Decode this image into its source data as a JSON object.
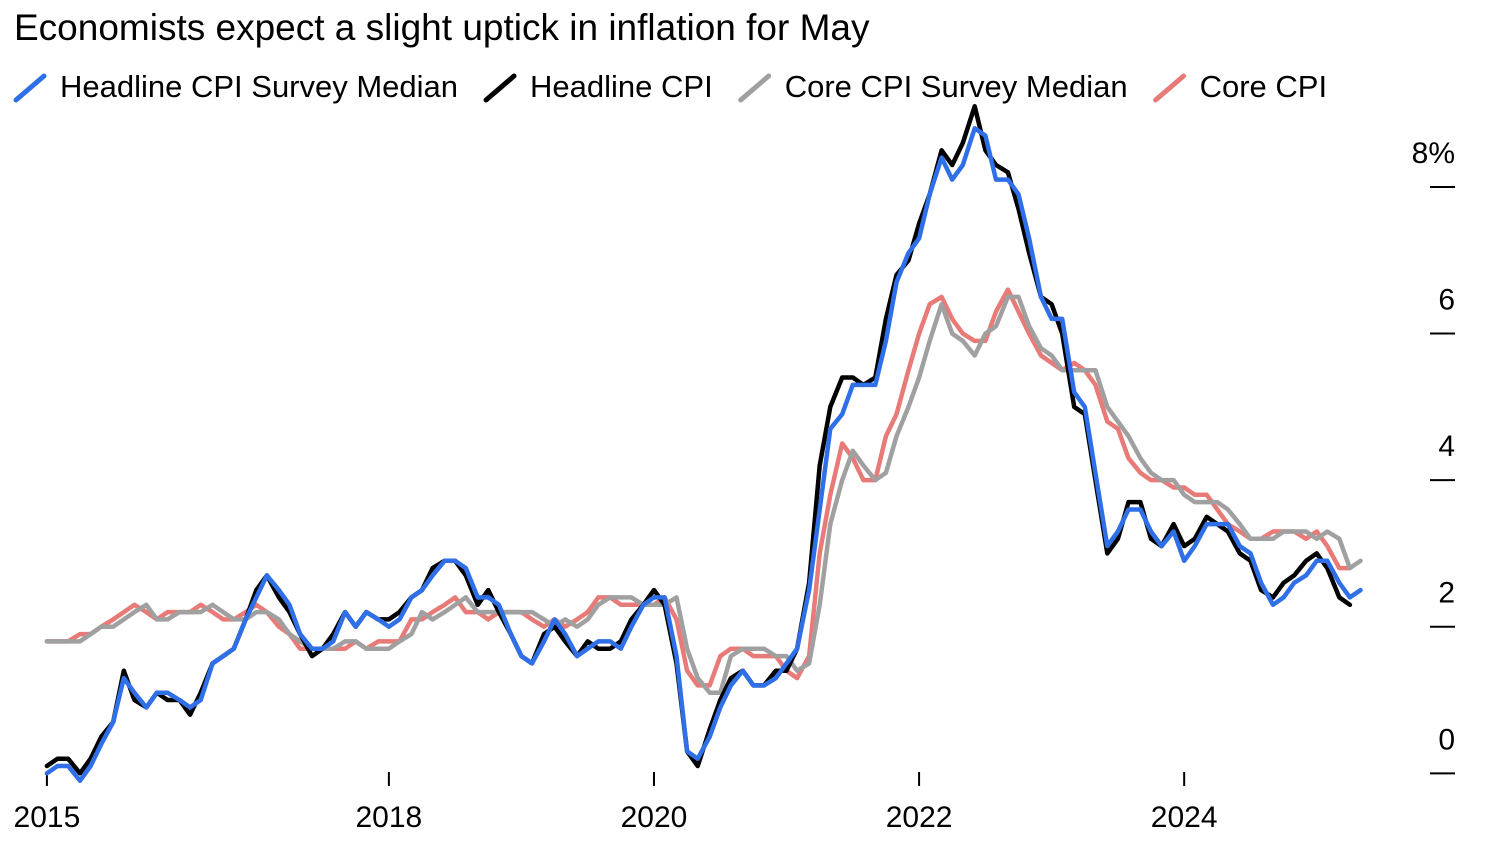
{
  "chart_data": {
    "type": "line",
    "title": "Economists expect a slight uptick in inflation for May",
    "x": [
      2015.42,
      2015.5,
      2015.58,
      2015.67,
      2015.75,
      2015.83,
      2015.92,
      2016,
      2016.08,
      2016.17,
      2016.25,
      2016.33,
      2016.42,
      2016.5,
      2016.58,
      2016.67,
      2016.75,
      2016.83,
      2016.92,
      2017,
      2017.08,
      2017.17,
      2017.25,
      2017.33,
      2017.42,
      2017.5,
      2017.58,
      2017.67,
      2017.75,
      2017.83,
      2017.92,
      2018,
      2018.08,
      2018.17,
      2018.25,
      2018.33,
      2018.42,
      2018.5,
      2018.58,
      2018.67,
      2018.75,
      2018.83,
      2018.92,
      2019,
      2019.08,
      2019.17,
      2019.25,
      2019.33,
      2019.42,
      2019.5,
      2019.58,
      2019.67,
      2019.75,
      2019.83,
      2019.92,
      2020,
      2020.08,
      2020.17,
      2020.25,
      2020.33,
      2020.42,
      2020.5,
      2020.58,
      2020.67,
      2020.75,
      2020.83,
      2020.92,
      2021,
      2021.08,
      2021.17,
      2021.25,
      2021.33,
      2021.42,
      2021.5,
      2021.58,
      2021.67,
      2021.75,
      2021.83,
      2021.92,
      2022,
      2022.08,
      2022.17,
      2022.25,
      2022.33,
      2022.42,
      2022.5,
      2022.58,
      2022.67,
      2022.75,
      2022.83,
      2022.92,
      2023,
      2023.08,
      2023.17,
      2023.25,
      2023.33,
      2023.42,
      2023.5,
      2023.58,
      2023.67,
      2023.75,
      2023.83,
      2023.92,
      2024,
      2024.08,
      2024.17,
      2024.25,
      2024.33,
      2024.42,
      2024.5,
      2024.58,
      2024.67,
      2024.75,
      2024.83,
      2024.92,
      2025,
      2025.08,
      2025.17,
      2025.25,
      2025.33
    ],
    "series": [
      {
        "name": "Headline CPI Survey Median",
        "color": "#2f6fe8",
        "values": [
          0.0,
          0.1,
          0.1,
          -0.1,
          0.1,
          0.4,
          0.7,
          1.3,
          1.1,
          0.9,
          1.1,
          1.1,
          1.0,
          0.9,
          1.0,
          1.5,
          1.6,
          1.7,
          2.1,
          2.4,
          2.7,
          2.5,
          2.3,
          1.9,
          1.7,
          1.7,
          1.8,
          2.2,
          2.0,
          2.2,
          2.1,
          2.0,
          2.1,
          2.4,
          2.5,
          2.7,
          2.9,
          2.9,
          2.8,
          2.4,
          2.4,
          2.3,
          1.9,
          1.6,
          1.5,
          1.8,
          2.1,
          1.9,
          1.6,
          1.7,
          1.8,
          1.8,
          1.7,
          2.0,
          2.3,
          2.4,
          2.4,
          1.6,
          0.3,
          0.2,
          0.5,
          0.9,
          1.2,
          1.4,
          1.2,
          1.2,
          1.3,
          1.5,
          1.7,
          2.5,
          3.6,
          4.7,
          4.9,
          5.3,
          5.3,
          5.3,
          5.9,
          6.7,
          7.1,
          7.3,
          7.9,
          8.4,
          8.1,
          8.3,
          8.8,
          8.7,
          8.1,
          8.1,
          7.9,
          7.3,
          6.5,
          6.2,
          6.2,
          5.2,
          5.0,
          4.1,
          3.1,
          3.3,
          3.6,
          3.6,
          3.3,
          3.1,
          3.3,
          2.9,
          3.1,
          3.4,
          3.4,
          3.4,
          3.1,
          3.0,
          2.6,
          2.3,
          2.4,
          2.6,
          2.7,
          2.9,
          2.9,
          2.6,
          2.4,
          2.5
        ]
      },
      {
        "name": "Headline CPI",
        "color": "#000000",
        "values": [
          0.1,
          0.2,
          0.2,
          0.0,
          0.2,
          0.5,
          0.7,
          1.4,
          1.0,
          0.9,
          1.1,
          1.0,
          1.0,
          0.8,
          1.1,
          1.5,
          1.6,
          1.7,
          2.1,
          2.5,
          2.7,
          2.4,
          2.2,
          1.9,
          1.6,
          1.7,
          1.9,
          2.2,
          2.0,
          2.2,
          2.1,
          2.1,
          2.2,
          2.4,
          2.5,
          2.8,
          2.9,
          2.9,
          2.7,
          2.3,
          2.5,
          2.2,
          1.9,
          1.6,
          1.5,
          1.9,
          2.0,
          1.8,
          1.6,
          1.8,
          1.7,
          1.7,
          1.8,
          2.1,
          2.3,
          2.5,
          2.3,
          1.5,
          0.3,
          0.1,
          0.6,
          1.0,
          1.3,
          1.4,
          1.2,
          1.2,
          1.4,
          1.4,
          1.7,
          2.6,
          4.2,
          5.0,
          5.4,
          5.4,
          5.3,
          5.4,
          6.2,
          6.8,
          7.0,
          7.5,
          7.9,
          8.5,
          8.3,
          8.6,
          9.1,
          8.5,
          8.3,
          8.2,
          7.7,
          7.1,
          6.5,
          6.4,
          6.0,
          5.0,
          4.9,
          4.0,
          3.0,
          3.2,
          3.7,
          3.7,
          3.2,
          3.1,
          3.4,
          3.1,
          3.2,
          3.5,
          3.4,
          3.3,
          3.0,
          2.9,
          2.5,
          2.4,
          2.6,
          2.7,
          2.9,
          3.0,
          2.8,
          2.4,
          2.3,
          null
        ]
      },
      {
        "name": "Core CPI Survey Median",
        "color": "#a0a0a0",
        "values": [
          1.8,
          1.8,
          1.8,
          1.8,
          1.9,
          2.0,
          2.0,
          2.1,
          2.2,
          2.3,
          2.1,
          2.1,
          2.2,
          2.2,
          2.2,
          2.3,
          2.2,
          2.1,
          2.1,
          2.2,
          2.2,
          2.1,
          1.9,
          1.8,
          1.7,
          1.7,
          1.7,
          1.8,
          1.8,
          1.7,
          1.7,
          1.7,
          1.8,
          1.9,
          2.2,
          2.1,
          2.2,
          2.3,
          2.4,
          2.2,
          2.2,
          2.2,
          2.2,
          2.2,
          2.2,
          2.1,
          2.0,
          2.1,
          2.0,
          2.1,
          2.3,
          2.4,
          2.4,
          2.4,
          2.3,
          2.3,
          2.3,
          2.4,
          1.7,
          1.3,
          1.1,
          1.1,
          1.6,
          1.7,
          1.7,
          1.7,
          1.6,
          1.6,
          1.4,
          1.5,
          2.3,
          3.4,
          4.0,
          4.4,
          4.2,
          4.0,
          4.1,
          4.6,
          5.0,
          5.4,
          5.9,
          6.4,
          6.0,
          5.9,
          5.7,
          6.0,
          6.1,
          6.5,
          6.5,
          6.1,
          5.8,
          5.7,
          5.5,
          5.5,
          5.5,
          5.5,
          5.0,
          4.8,
          4.6,
          4.3,
          4.1,
          4.0,
          4.0,
          3.8,
          3.7,
          3.7,
          3.7,
          3.6,
          3.4,
          3.2,
          3.2,
          3.2,
          3.3,
          3.3,
          3.3,
          3.2,
          3.3,
          3.2,
          2.8,
          2.9
        ]
      },
      {
        "name": "Core CPI",
        "color": "#e87a77",
        "values": [
          1.8,
          1.8,
          1.8,
          1.9,
          1.9,
          2.0,
          2.1,
          2.2,
          2.3,
          2.2,
          2.1,
          2.2,
          2.2,
          2.2,
          2.3,
          2.2,
          2.1,
          2.1,
          2.2,
          2.3,
          2.2,
          2.0,
          1.9,
          1.7,
          1.7,
          1.7,
          1.7,
          1.7,
          1.8,
          1.7,
          1.8,
          1.8,
          1.8,
          2.1,
          2.1,
          2.2,
          2.3,
          2.4,
          2.2,
          2.2,
          2.1,
          2.2,
          2.2,
          2.2,
          2.1,
          2.0,
          2.1,
          2.0,
          2.1,
          2.2,
          2.4,
          2.4,
          2.3,
          2.3,
          2.3,
          2.3,
          2.4,
          2.1,
          1.4,
          1.2,
          1.2,
          1.6,
          1.7,
          1.7,
          1.6,
          1.6,
          1.6,
          1.4,
          1.3,
          1.6,
          3.0,
          3.8,
          4.5,
          4.3,
          4.0,
          4.0,
          4.6,
          4.9,
          5.5,
          6.0,
          6.4,
          6.5,
          6.2,
          6.0,
          5.9,
          5.9,
          6.3,
          6.6,
          6.3,
          6.0,
          5.7,
          5.6,
          5.5,
          5.6,
          5.5,
          5.3,
          4.8,
          4.7,
          4.3,
          4.1,
          4.0,
          4.0,
          3.9,
          3.9,
          3.8,
          3.8,
          3.6,
          3.4,
          3.3,
          3.2,
          3.2,
          3.3,
          3.3,
          3.3,
          3.2,
          3.3,
          3.1,
          2.8,
          2.8,
          null
        ]
      }
    ],
    "xlim": [
      2015.3,
      2025.5
    ],
    "xticks": [
      {
        "value": 2015.42,
        "label": "2015"
      },
      2018,
      2020,
      2022,
      2024
    ],
    "ylim": [
      -0.2,
      9.2
    ],
    "yticks": [
      0,
      2,
      4,
      6,
      {
        "value": 8,
        "label": "8%"
      }
    ]
  }
}
